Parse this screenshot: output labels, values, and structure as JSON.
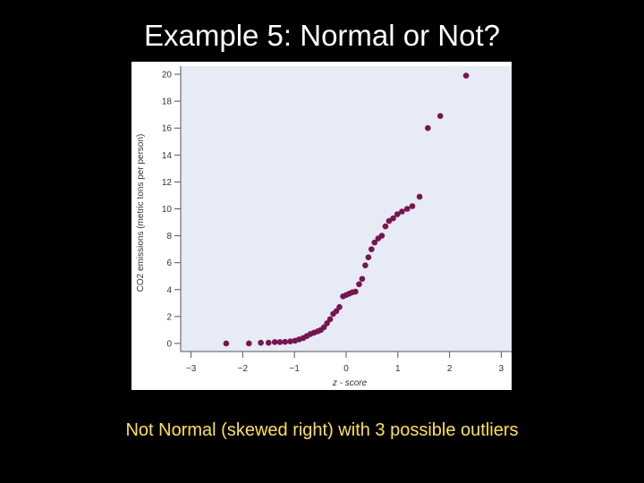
{
  "slide": {
    "title": "Example 5:  Normal or Not?",
    "caption": "Not Normal (skewed right) with 3 possible outliers"
  },
  "colors": {
    "background": "#000000",
    "title": "#ffffff",
    "caption": "#ffe24a",
    "plot_area": "#e6ebf6",
    "points": "#7a1450"
  },
  "chart_data": {
    "type": "scatter",
    "title": "",
    "xlabel": "z - score",
    "ylabel": "CO2 emissions (metric tons per person)",
    "xlim": [
      -3.2,
      3.2
    ],
    "ylim": [
      -0.6,
      20.6
    ],
    "x_ticks": [
      -3,
      -2,
      -1,
      0,
      1,
      2,
      3
    ],
    "x_tick_labels": [
      "−3",
      "−2",
      "−1",
      "0",
      "1",
      "2",
      "3"
    ],
    "y_ticks": [
      0,
      2,
      4,
      6,
      8,
      10,
      12,
      14,
      16,
      18,
      20
    ],
    "grid": false,
    "legend": "none",
    "points": [
      {
        "x": -2.32,
        "y": 0.0
      },
      {
        "x": -1.88,
        "y": 0.0
      },
      {
        "x": -1.65,
        "y": 0.05
      },
      {
        "x": -1.5,
        "y": 0.05
      },
      {
        "x": -1.38,
        "y": 0.1
      },
      {
        "x": -1.28,
        "y": 0.1
      },
      {
        "x": -1.18,
        "y": 0.12
      },
      {
        "x": -1.08,
        "y": 0.15
      },
      {
        "x": -0.99,
        "y": 0.2
      },
      {
        "x": -0.91,
        "y": 0.3
      },
      {
        "x": -0.83,
        "y": 0.4
      },
      {
        "x": -0.76,
        "y": 0.55
      },
      {
        "x": -0.69,
        "y": 0.7
      },
      {
        "x": -0.62,
        "y": 0.8
      },
      {
        "x": -0.55,
        "y": 0.9
      },
      {
        "x": -0.49,
        "y": 1.0
      },
      {
        "x": -0.43,
        "y": 1.2
      },
      {
        "x": -0.37,
        "y": 1.5
      },
      {
        "x": -0.31,
        "y": 1.8
      },
      {
        "x": -0.25,
        "y": 2.2
      },
      {
        "x": -0.19,
        "y": 2.4
      },
      {
        "x": -0.13,
        "y": 2.7
      },
      {
        "x": -0.06,
        "y": 3.5
      },
      {
        "x": 0.0,
        "y": 3.6
      },
      {
        "x": 0.06,
        "y": 3.7
      },
      {
        "x": 0.12,
        "y": 3.8
      },
      {
        "x": 0.18,
        "y": 3.85
      },
      {
        "x": 0.25,
        "y": 4.4
      },
      {
        "x": 0.31,
        "y": 4.8
      },
      {
        "x": 0.37,
        "y": 5.8
      },
      {
        "x": 0.43,
        "y": 6.4
      },
      {
        "x": 0.49,
        "y": 7.0
      },
      {
        "x": 0.55,
        "y": 7.5
      },
      {
        "x": 0.62,
        "y": 7.8
      },
      {
        "x": 0.69,
        "y": 8.0
      },
      {
        "x": 0.76,
        "y": 8.7
      },
      {
        "x": 0.83,
        "y": 9.1
      },
      {
        "x": 0.91,
        "y": 9.3
      },
      {
        "x": 0.99,
        "y": 9.6
      },
      {
        "x": 1.08,
        "y": 9.8
      },
      {
        "x": 1.18,
        "y": 10.0
      },
      {
        "x": 1.28,
        "y": 10.2
      },
      {
        "x": 1.42,
        "y": 10.9
      },
      {
        "x": 1.58,
        "y": 16.0
      },
      {
        "x": 1.82,
        "y": 16.9
      },
      {
        "x": 2.32,
        "y": 19.9
      }
    ]
  }
}
